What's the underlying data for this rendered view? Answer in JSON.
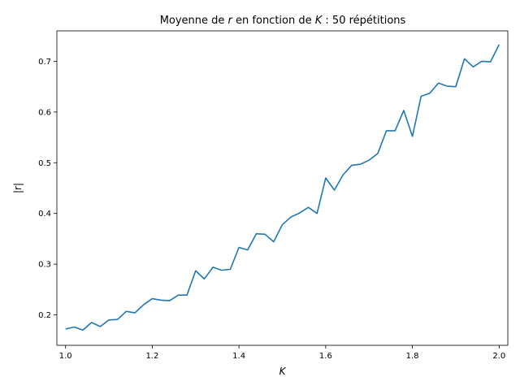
{
  "chart_data": {
    "type": "line",
    "title": {
      "prefix": "Moyenne de ",
      "var1": "r",
      "middle": " en fonction de ",
      "var2": "K",
      "suffix": " : 50 répétitions"
    },
    "xlabel": "K",
    "ylabel": "|r|",
    "xlim": [
      0.98,
      2.02
    ],
    "ylim": [
      0.14,
      0.76
    ],
    "xticks": [
      1.0,
      1.2,
      1.4,
      1.6,
      1.8,
      2.0
    ],
    "xtick_labels": [
      "1.0",
      "1.2",
      "1.4",
      "1.6",
      "1.8",
      "2.0"
    ],
    "yticks": [
      0.2,
      0.3,
      0.4,
      0.5,
      0.6,
      0.7
    ],
    "ytick_labels": [
      "0.2",
      "0.3",
      "0.4",
      "0.5",
      "0.6",
      "0.7"
    ],
    "grid": false,
    "series": [
      {
        "color": "#1f77b4",
        "x": [
          1.0,
          1.02,
          1.04,
          1.06,
          1.08,
          1.1,
          1.12,
          1.14,
          1.16,
          1.18,
          1.2,
          1.22,
          1.24,
          1.26,
          1.28,
          1.3,
          1.32,
          1.34,
          1.36,
          1.38,
          1.4,
          1.42,
          1.44,
          1.46,
          1.48,
          1.5,
          1.52,
          1.54,
          1.56,
          1.58,
          1.6,
          1.62,
          1.64,
          1.66,
          1.68,
          1.7,
          1.72,
          1.74,
          1.76,
          1.78,
          1.8,
          1.82,
          1.84,
          1.86,
          1.88,
          1.9,
          1.92,
          1.94,
          1.96,
          1.98,
          2.0
        ],
        "y": [
          0.172,
          0.176,
          0.17,
          0.185,
          0.177,
          0.19,
          0.191,
          0.207,
          0.204,
          0.22,
          0.232,
          0.229,
          0.228,
          0.239,
          0.239,
          0.287,
          0.271,
          0.294,
          0.288,
          0.29,
          0.333,
          0.328,
          0.36,
          0.359,
          0.344,
          0.378,
          0.393,
          0.401,
          0.412,
          0.4,
          0.47,
          0.446,
          0.476,
          0.495,
          0.497,
          0.505,
          0.518,
          0.563,
          0.563,
          0.603,
          0.552,
          0.631,
          0.637,
          0.657,
          0.651,
          0.65,
          0.705,
          0.689,
          0.7,
          0.699,
          0.733
        ]
      }
    ]
  }
}
